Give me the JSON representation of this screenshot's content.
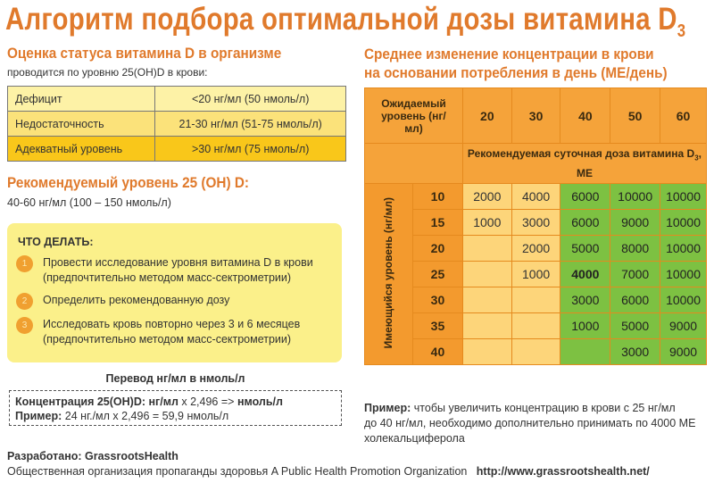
{
  "title": {
    "main": "Алгоритм подбора оптимальной дозы витамина D",
    "sub": "3"
  },
  "status": {
    "heading": "Оценка статуса витамина D в организме",
    "subtitle": "проводится по уровню 25(OH)D в крови:",
    "rows": [
      {
        "label": "Дефицит",
        "value": "<20 нг/мл (50 нмоль/л)",
        "color": "#fdf2a6"
      },
      {
        "label": "Недостаточность",
        "value": "21-30 нг/мл (51-75 нмоль/л)",
        "color": "#fbe27a"
      },
      {
        "label": "Адекватный уровень",
        "value": ">30 нг/мл (75 нмоль/л)",
        "color": "#f9c71a"
      }
    ]
  },
  "recommended": {
    "heading": "Рекомендуемый уровень 25 (OH) D:",
    "value": "40-60 нг/мл (100 – 150 нмоль/л)"
  },
  "todo": {
    "heading": "ЧТО ДЕЛАТЬ:",
    "steps": [
      {
        "n": "1",
        "l1": "Провести исследование уровня витамина D в крови",
        "l2": "(предпочтительно методом масс-сектрометрии)"
      },
      {
        "n": "2",
        "l1": "Определить рекомендованную дозу",
        "l2": ""
      },
      {
        "n": "3",
        "l1": "Исследовать кровь повторно через 3 и 6 месяцев",
        "l2": "(предпочтительно методом масс-сектрометрии)"
      }
    ]
  },
  "conversion": {
    "heading": "Перевод нг/мл в нмоль/л",
    "l1_bold": "Концентрация 25(OH)D: нг/мл",
    "l1_mid": " x 2,496 => ",
    "l1_end": "нмоль/л",
    "l2_bold": "Пример:",
    "l2": " 24 нг./мл x 2,496 = 59,9 нмоль/л"
  },
  "credits": {
    "label": "Разработано: GrassrootsHealth",
    "org": "Общественная организация пропаганды здоровья A Public Health Promotion Organization",
    "url": "http://www.grassrootshealth.net/"
  },
  "dose": {
    "heading1": "Среднее изменение концентрации в крови",
    "heading2": "на основании потребления в день (МЕ/день)",
    "expected_label": "Ожидаемый уровень (нг/мл)",
    "expected": [
      "20",
      "30",
      "40",
      "50",
      "60"
    ],
    "subheader": "Рекомендуемая суточная доза витамина D",
    "subheader_sub": "3",
    "subheader_end": ", МЕ",
    "current_label": "Имеющийся уровень (нг/мл)",
    "rows": [
      {
        "current": "10",
        "values": [
          "2000",
          "4000",
          "6000",
          "10000",
          "10000"
        ]
      },
      {
        "current": "15",
        "values": [
          "1000",
          "3000",
          "6000",
          "9000",
          "10000"
        ]
      },
      {
        "current": "20",
        "values": [
          "",
          "2000",
          "5000",
          "8000",
          "10000"
        ]
      },
      {
        "current": "25",
        "values": [
          "",
          "1000",
          "4000",
          "7000",
          "10000"
        ]
      },
      {
        "current": "30",
        "values": [
          "",
          "",
          "3000",
          "6000",
          "10000"
        ]
      },
      {
        "current": "35",
        "values": [
          "",
          "",
          "1000",
          "5000",
          "9000"
        ]
      },
      {
        "current": "40",
        "values": [
          "",
          "",
          "",
          "3000",
          "9000"
        ]
      }
    ],
    "colors": {
      "header": "#f5a33a",
      "row_header": "#f39a2e",
      "yellow": "#fdd57a",
      "green": "#7dc142"
    }
  },
  "example": {
    "bold": "Пример:",
    "text": " чтобы увеличить концентрацию в крови с 25 нг/мл",
    "l2": "до 40 нг/мл, необходимо дополнительно принимать по 4000 МЕ",
    "l3": "холекальциферола"
  }
}
